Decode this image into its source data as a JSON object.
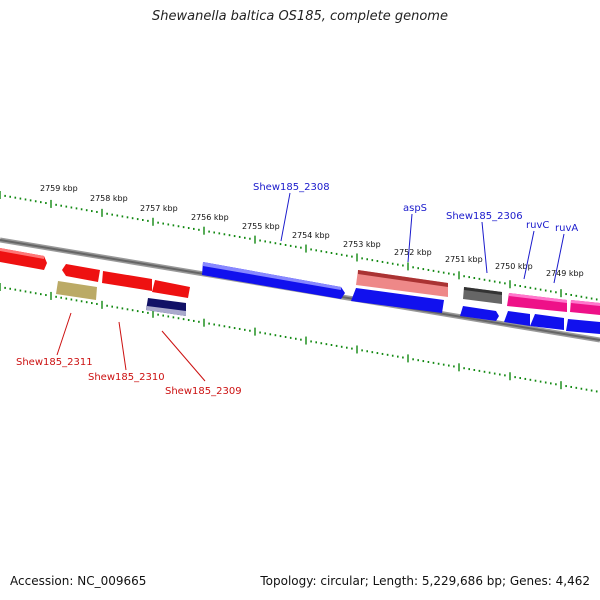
{
  "title": "Shewanella baltica OS185, complete genome",
  "footer": {
    "accession": "Accession: NC_009665",
    "summary": "Topology: circular; Length: 5,229,686 bp; Genes: 4,462"
  },
  "ruler_labels": [
    "2759 kbp",
    "2758 kbp",
    "2757 kbp",
    "2756 kbp",
    "2755 kbp",
    "2754 kbp",
    "2753 kbp",
    "2752 kbp",
    "2751 kbp",
    "2750 kbp",
    "2749 kbp"
  ],
  "gene_labels": {
    "top": [
      "Shew185_2308",
      "aspS",
      "Shew185_2306",
      "ruvC",
      "ruvA"
    ],
    "bottom": [
      "Shew185_2311",
      "Shew185_2310",
      "Shew185_2309"
    ]
  },
  "colors": {
    "cds_red": "#ee1111",
    "cds_blue": "#1111ee",
    "cds_pink": "#ee8888",
    "cds_magenta": "#ee1188",
    "cds_gray": "#666666",
    "cds_olive": "#bbaa66",
    "cds_navy": "#111166",
    "tick_green": "#118811",
    "label_blue": "#1a1acc",
    "label_red": "#cc1111"
  }
}
